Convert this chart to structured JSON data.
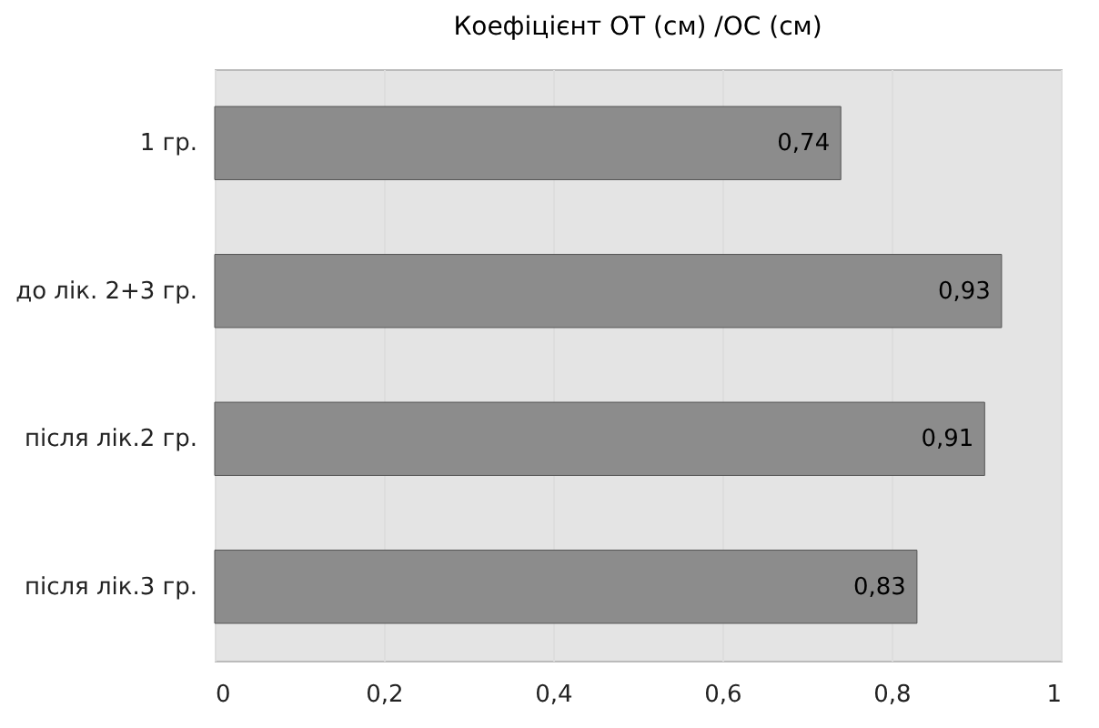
{
  "chart_data": {
    "type": "bar",
    "orientation": "horizontal",
    "title": "Коефіцієнт ОТ (см) /ОС (см)",
    "categories": [
      "1 гр.",
      "до лік. 2+3 гр.",
      "після лік.2 гр.",
      "після лік.3 гр."
    ],
    "values": [
      0.74,
      0.93,
      0.91,
      0.83
    ],
    "value_labels": [
      "0,74",
      "0,93",
      "0,91",
      "0,83"
    ],
    "color": "#8c8c8c",
    "xlim": [
      0,
      1
    ],
    "xticks": [
      0,
      {
        "value": 0.2,
        "label": "0,2"
      },
      {
        "value": 0.4,
        "label": "0,4"
      },
      {
        "value": 0.6,
        "label": "0,6"
      },
      {
        "value": 0.8,
        "label": "0,8"
      },
      1
    ],
    "grid": "x"
  }
}
